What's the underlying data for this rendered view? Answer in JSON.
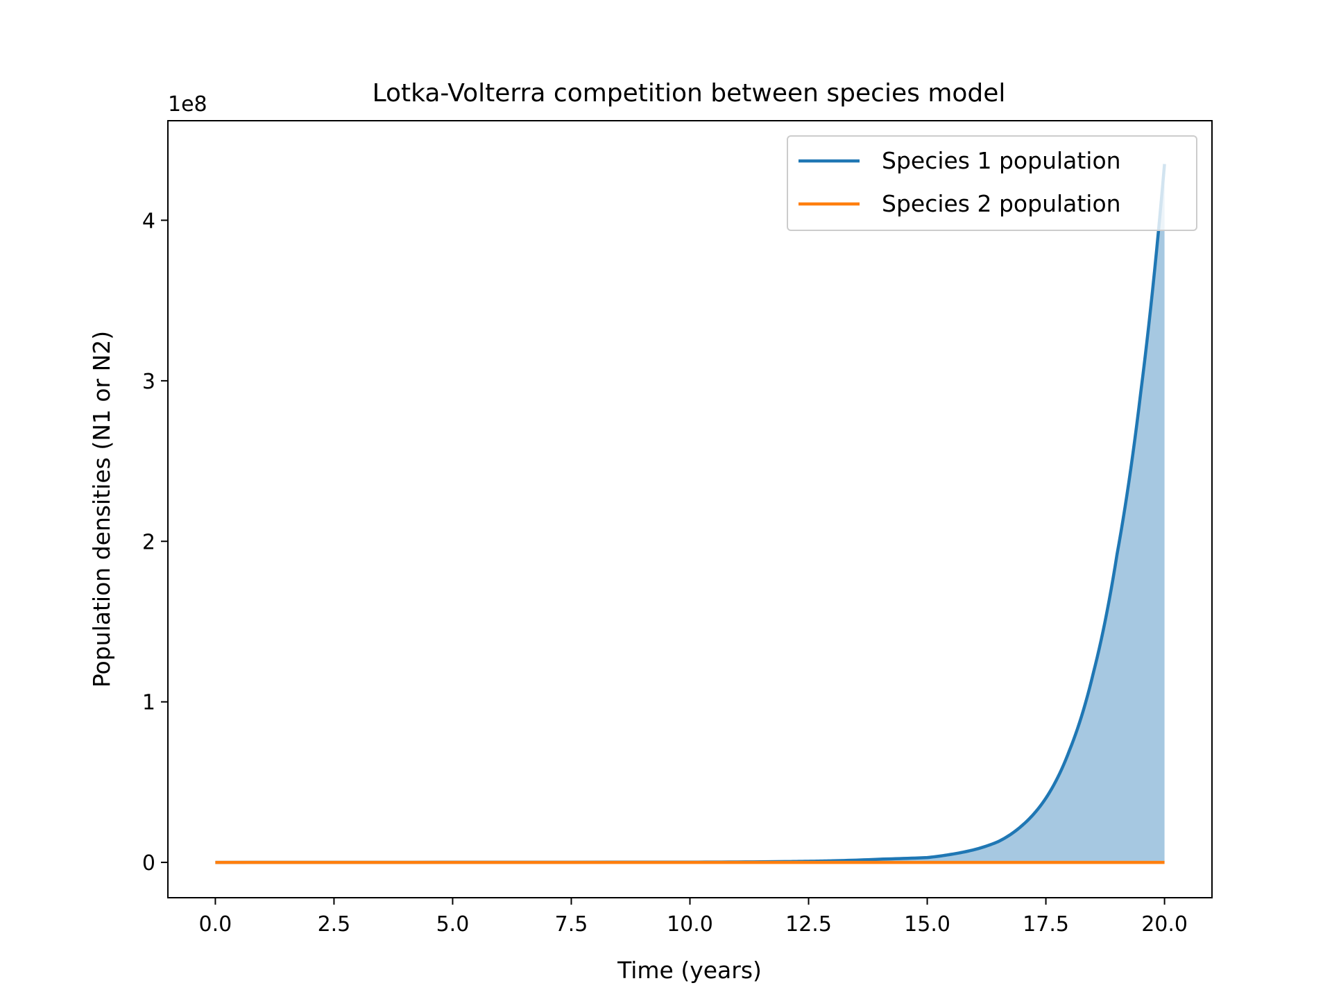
{
  "chart_data": {
    "type": "line",
    "title": "Lotka-Volterra competition between species model",
    "xlabel": "Time (years)",
    "ylabel": "Population densities (N1 or N2)",
    "y_offset_label": "1e8",
    "xlim": [
      -1.0,
      21.0
    ],
    "ylim": [
      -0.22,
      4.62
    ],
    "y_units": "1e8",
    "x_ticks": [
      0.0,
      2.5,
      5.0,
      7.5,
      10.0,
      12.5,
      15.0,
      17.5,
      20.0
    ],
    "x_tick_labels": [
      "0.0",
      "2.5",
      "5.0",
      "7.5",
      "10.0",
      "12.5",
      "15.0",
      "17.5",
      "20.0"
    ],
    "y_ticks": [
      0,
      1,
      2,
      3,
      4
    ],
    "y_tick_labels": [
      "0",
      "1",
      "2",
      "3",
      "4"
    ],
    "grid": false,
    "legend_position": "top-right",
    "series": [
      {
        "name": "Species 1 population",
        "color": "#1f77b4",
        "fill": true,
        "fill_color": "#a6c8e1",
        "x": [
          0,
          10,
          12,
          12.5,
          13,
          14,
          15,
          15.5,
          16,
          16.5,
          17,
          17.5,
          18,
          18.5,
          19,
          19.5,
          20
        ],
        "y": [
          0,
          0.0015,
          0.005,
          0.007,
          0.01,
          0.02,
          0.03,
          0.05,
          0.08,
          0.13,
          0.23,
          0.4,
          0.7,
          1.18,
          1.92,
          2.93,
          4.35
        ]
      },
      {
        "name": "Species 2 population",
        "color": "#ff7f0e",
        "fill": false,
        "x": [
          0,
          20
        ],
        "y": [
          0,
          0
        ]
      }
    ]
  }
}
